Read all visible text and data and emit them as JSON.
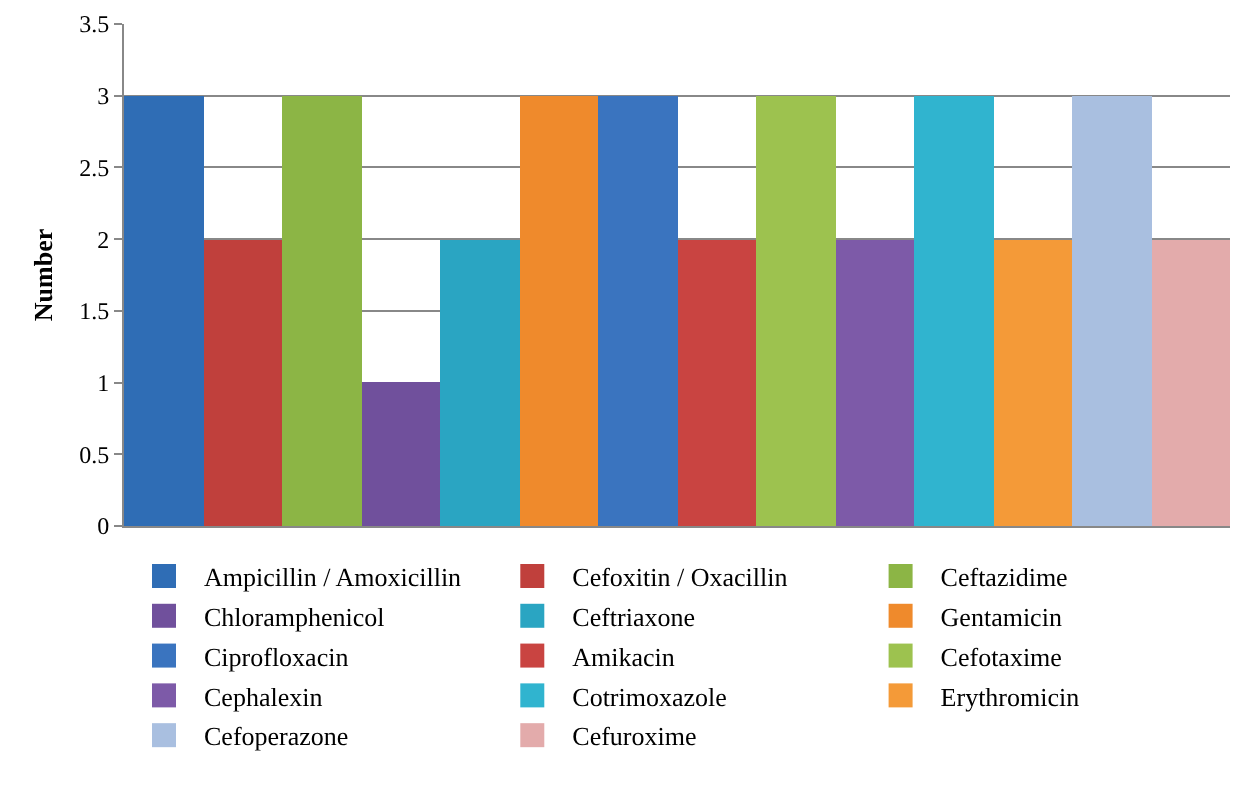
{
  "chart_data": {
    "type": "bar",
    "ylabel": "Number",
    "categories": [
      null,
      null,
      null,
      null,
      null,
      null,
      null,
      null,
      null,
      null,
      null,
      null,
      null,
      null
    ],
    "ylim": [
      0,
      3.5
    ],
    "yticks": [
      0,
      0.5,
      1,
      1.5,
      2,
      2.5,
      3,
      3.5
    ],
    "grid": "y",
    "legend": "bottom",
    "series": [
      {
        "name": "Ampicillin / Amoxicillin",
        "color": "#2f6db5",
        "values": [
          3,
          null,
          null,
          null,
          null,
          null,
          null,
          null,
          null,
          null,
          null,
          null,
          null,
          null
        ]
      },
      {
        "name": "Cefoxitin / Oxacillin",
        "color": "#c0403c",
        "values": [
          null,
          2,
          null,
          null,
          null,
          null,
          null,
          null,
          null,
          null,
          null,
          null,
          null,
          null
        ]
      },
      {
        "name": "Ceftazidime",
        "color": "#8cb545",
        "values": [
          null,
          null,
          3,
          null,
          null,
          null,
          null,
          null,
          null,
          null,
          null,
          null,
          null,
          null
        ]
      },
      {
        "name": "Chloramphenicol",
        "color": "#70509c",
        "values": [
          null,
          null,
          null,
          1,
          null,
          null,
          null,
          null,
          null,
          null,
          null,
          null,
          null,
          null
        ]
      },
      {
        "name": "Ceftriaxone",
        "color": "#2aa5c2",
        "values": [
          null,
          null,
          null,
          null,
          2,
          null,
          null,
          null,
          null,
          null,
          null,
          null,
          null,
          null
        ]
      },
      {
        "name": "Gentamicin",
        "color": "#ef8a2c",
        "values": [
          null,
          null,
          null,
          null,
          null,
          3,
          null,
          null,
          null,
          null,
          null,
          null,
          null,
          null
        ]
      },
      {
        "name": "Ciprofloxacin",
        "color": "#3a74bf",
        "values": [
          null,
          null,
          null,
          null,
          null,
          null,
          3,
          null,
          null,
          null,
          null,
          null,
          null,
          null
        ]
      },
      {
        "name": "Amikacin",
        "color": "#c94441",
        "values": [
          null,
          null,
          null,
          null,
          null,
          null,
          null,
          2,
          null,
          null,
          null,
          null,
          null,
          null
        ]
      },
      {
        "name": "Cefotaxime",
        "color": "#9dc24f",
        "values": [
          null,
          null,
          null,
          null,
          null,
          null,
          null,
          null,
          3,
          null,
          null,
          null,
          null,
          null
        ]
      },
      {
        "name": "Cephalexin",
        "color": "#7d5aa8",
        "values": [
          null,
          null,
          null,
          null,
          null,
          null,
          null,
          null,
          null,
          2,
          null,
          null,
          null,
          null
        ]
      },
      {
        "name": "Cotrimoxazole",
        "color": "#30b4cf",
        "values": [
          null,
          null,
          null,
          null,
          null,
          null,
          null,
          null,
          null,
          null,
          3,
          null,
          null,
          null
        ]
      },
      {
        "name": "Erythromicin",
        "color": "#f49a38",
        "values": [
          null,
          null,
          null,
          null,
          null,
          null,
          null,
          null,
          null,
          null,
          null,
          2,
          null,
          null
        ]
      },
      {
        "name": "Cefoperazone",
        "color": "#a9bfe0",
        "values": [
          null,
          null,
          null,
          null,
          null,
          null,
          null,
          null,
          null,
          null,
          null,
          null,
          3,
          null
        ]
      },
      {
        "name": "Cefuroxime",
        "color": "#e3abab",
        "values": [
          null,
          null,
          null,
          null,
          null,
          null,
          null,
          null,
          null,
          null,
          null,
          null,
          null,
          2
        ]
      }
    ]
  }
}
